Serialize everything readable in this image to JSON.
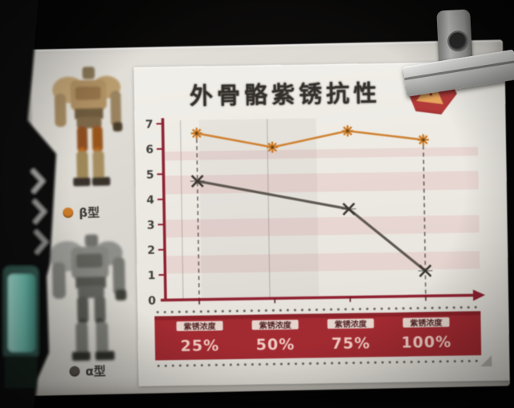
{
  "title": {
    "text": "外骨骼紫锈抗性"
  },
  "warning": {
    "symbol": "!"
  },
  "legend": {
    "items": [
      {
        "id": "beta",
        "label": "β型",
        "dot_color": "#cc7c29"
      },
      {
        "id": "alpha",
        "label": "α型",
        "dot_color": "#55504a"
      }
    ]
  },
  "chart_data": {
    "type": "line",
    "title": "外骨骼紫锈抗性",
    "xlabel": "",
    "ylabel": "",
    "ylim": [
      0,
      7
    ],
    "yticks": [
      0,
      1,
      2,
      3,
      4,
      5,
      6,
      7
    ],
    "grid": "sparse-vertical",
    "legend_position": "outside-left",
    "x_category_label": "紫锈浓度",
    "categories": [
      "25%",
      "50%",
      "75%",
      "100%"
    ],
    "series": [
      {
        "name": "β型",
        "color": "#cc7c29",
        "marker": "asterisk",
        "values": [
          6.6,
          6.0,
          6.6,
          6.2
        ],
        "marker_indices": [
          0,
          1,
          2,
          3
        ]
      },
      {
        "name": "α型",
        "color": "#56504a",
        "marker": "x",
        "values": [
          4.7,
          4.1,
          3.5,
          1.0
        ],
        "marker_indices": [
          0,
          2,
          3
        ]
      }
    ],
    "dashed_guide_categories": [
      "25%",
      "100%"
    ],
    "axis_color": "#8e2130",
    "band_color": "#a22a31",
    "band_label_box_color": "#eae4da",
    "band_label_text_color": "#4c1e1e",
    "band_pct_text_color": "#f0cbc2"
  }
}
